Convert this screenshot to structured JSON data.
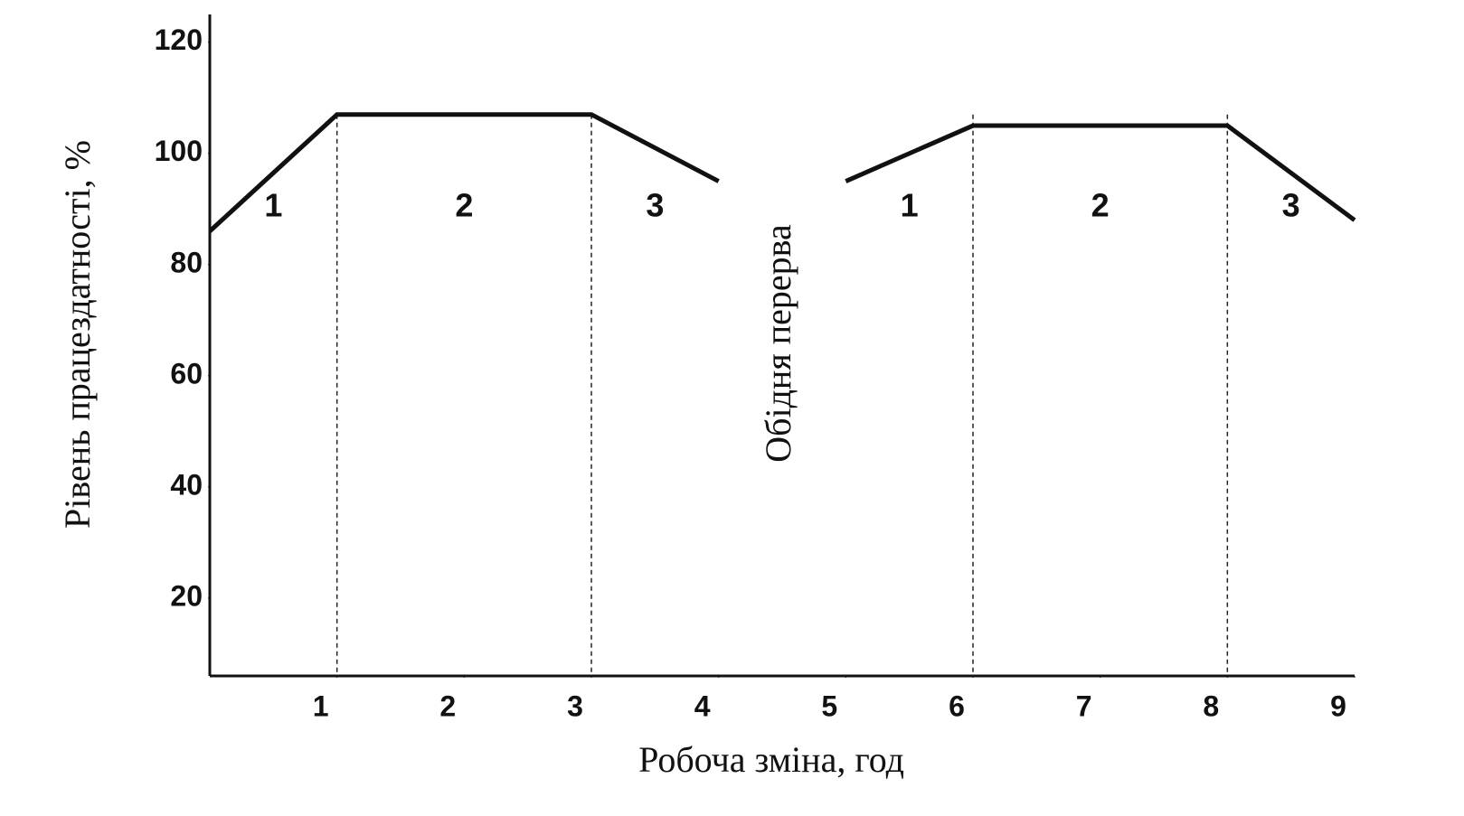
{
  "chart_data": {
    "type": "line",
    "x_label": "Робоча зміна, год",
    "y_label": "Рівень працездатності, %",
    "annotation": "Обідня перерва",
    "phase_labels": [
      "1",
      "2",
      "3",
      "1",
      "2",
      "3"
    ],
    "series": [
      {
        "color": "#111111",
        "x": [
          0,
          1,
          3,
          4
        ],
        "values": [
          86,
          107,
          107,
          95
        ]
      },
      {
        "color": "#111111",
        "x": [
          5,
          6,
          8,
          9
        ],
        "values": [
          95,
          105,
          105,
          88
        ]
      }
    ],
    "vlines": [
      1,
      3,
      6,
      8
    ],
    "xlim": [
      0,
      9
    ],
    "xticks": [
      1,
      2,
      3,
      4,
      5,
      6,
      7,
      8,
      9
    ],
    "ylim": [
      6,
      125
    ],
    "yticks": [
      20,
      40,
      60,
      80,
      100,
      120
    ],
    "grid": false
  }
}
